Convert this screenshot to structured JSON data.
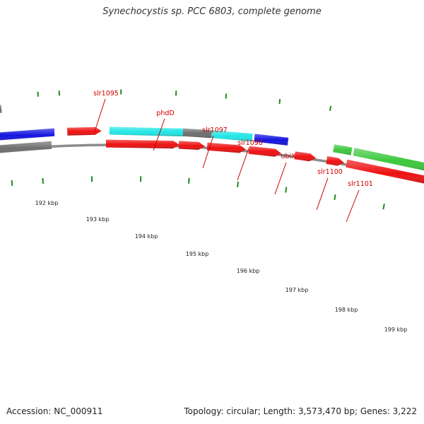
{
  "title": "Synechocystis sp. PCC 6803, complete genome",
  "footer": {
    "accession": "Accession: NC_000911",
    "summary": "Topology: circular; Length: 3,573,470 bp; Genes: 3,222"
  },
  "colors": {
    "backbone": "#8c8c8c",
    "tick": "#1e8a1e",
    "label": "#cc0000",
    "red": "#ee1111",
    "cyan": "#22e6e6",
    "blue": "#1414e0",
    "gray": "#6e6e6e",
    "green": "#3cc83c"
  },
  "scale_labels": [
    "192 kbp",
    "193 kbp",
    "194 kbp",
    "195 kbp",
    "196 kbp",
    "197 kbp",
    "198 kbp",
    "199 kbp"
  ],
  "gene_labels": [
    "slr1095",
    "phdD",
    "slr1097",
    "slr1098",
    "ubiX",
    "slr1100",
    "slr1101"
  ]
}
